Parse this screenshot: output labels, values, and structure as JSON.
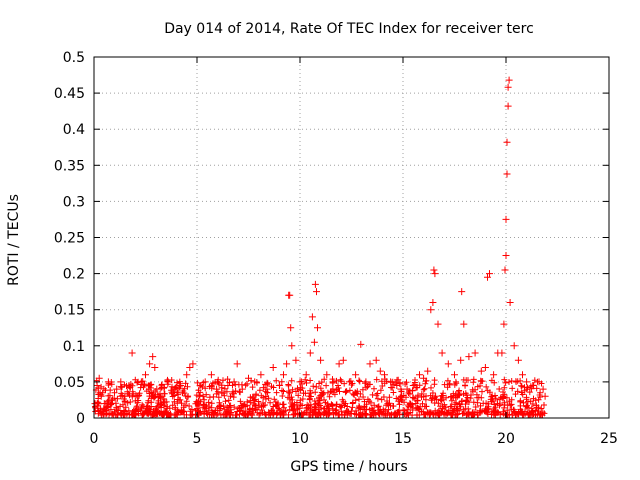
{
  "chart_data": {
    "type": "scatter",
    "title": "Day 014 of 2014, Rate Of TEC Index for receiver terc",
    "xlabel": "GPS time / hours",
    "ylabel": "ROTI / TECUs",
    "xlim": [
      0,
      25
    ],
    "ylim": [
      0,
      0.5
    ],
    "x_ticks": [
      0,
      5,
      10,
      15,
      20,
      25
    ],
    "x_tick_labels": [
      "0",
      "5",
      "10",
      "15",
      "20",
      "25"
    ],
    "y_ticks": [
      0,
      0.05,
      0.1,
      0.15,
      0.2,
      0.25,
      0.3,
      0.35,
      0.4,
      0.45,
      0.5
    ],
    "y_tick_labels": [
      "0",
      "0.05",
      "0.1",
      "0.15",
      "0.2",
      "0.25",
      "0.3",
      "0.35",
      "0.4",
      "0.45",
      "0.5"
    ],
    "grid": true,
    "marker": "+",
    "series": [
      {
        "name": "ROTI",
        "color": "#ff0000",
        "x": [
          0.05,
          0.15,
          0.25,
          0.35,
          0.5,
          0.7,
          0.9,
          1.1,
          1.3,
          1.5,
          1.7,
          1.85,
          2.1,
          2.3,
          2.5,
          2.7,
          2.85,
          2.95,
          3.05,
          3.3,
          3.6,
          3.9,
          4.2,
          4.5,
          4.65,
          4.8,
          5.1,
          5.4,
          5.7,
          5.95,
          6.2,
          6.5,
          6.8,
          6.95,
          7.2,
          7.5,
          7.8,
          8.1,
          8.4,
          8.7,
          9.0,
          9.2,
          9.35,
          9.45,
          9.5,
          9.55,
          9.6,
          9.8,
          10.0,
          10.3,
          10.5,
          10.6,
          10.7,
          10.75,
          10.8,
          10.85,
          11.0,
          11.3,
          11.6,
          11.9,
          12.1,
          12.4,
          12.7,
          12.95,
          13.2,
          13.4,
          13.7,
          13.9,
          14.1,
          14.4,
          14.7,
          14.9,
          15.2,
          15.5,
          15.8,
          16.0,
          16.2,
          16.35,
          16.45,
          16.5,
          16.55,
          16.7,
          16.9,
          17.2,
          17.5,
          17.8,
          17.85,
          17.95,
          18.2,
          18.5,
          18.8,
          19.0,
          19.1,
          19.2,
          19.4,
          19.6,
          19.8,
          19.9,
          19.95,
          20.0,
          20.0,
          20.05,
          20.05,
          20.1,
          20.1,
          20.15,
          20.2,
          20.4,
          20.6,
          20.8,
          21.0,
          21.3,
          21.6,
          21.8,
          21.9
        ],
        "y": [
          0.02,
          0.045,
          0.055,
          0.03,
          0.02,
          0.05,
          0.025,
          0.04,
          0.05,
          0.03,
          0.045,
          0.09,
          0.03,
          0.05,
          0.06,
          0.075,
          0.085,
          0.07,
          0.04,
          0.03,
          0.05,
          0.04,
          0.045,
          0.06,
          0.07,
          0.075,
          0.03,
          0.05,
          0.06,
          0.04,
          0.035,
          0.045,
          0.05,
          0.075,
          0.04,
          0.055,
          0.05,
          0.06,
          0.04,
          0.07,
          0.045,
          0.06,
          0.075,
          0.17,
          0.17,
          0.125,
          0.1,
          0.08,
          0.05,
          0.06,
          0.09,
          0.14,
          0.105,
          0.185,
          0.175,
          0.125,
          0.08,
          0.06,
          0.05,
          0.075,
          0.08,
          0.05,
          0.06,
          0.102,
          0.05,
          0.075,
          0.08,
          0.065,
          0.06,
          0.05,
          0.045,
          0.04,
          0.04,
          0.045,
          0.06,
          0.055,
          0.065,
          0.15,
          0.16,
          0.205,
          0.2,
          0.13,
          0.09,
          0.075,
          0.06,
          0.08,
          0.175,
          0.13,
          0.085,
          0.09,
          0.065,
          0.07,
          0.195,
          0.2,
          0.06,
          0.09,
          0.09,
          0.13,
          0.205,
          0.225,
          0.275,
          0.338,
          0.382,
          0.432,
          0.458,
          0.468,
          0.16,
          0.1,
          0.08,
          0.06,
          0.05,
          0.045,
          0.05,
          0.04,
          0.03
        ]
      }
    ]
  }
}
